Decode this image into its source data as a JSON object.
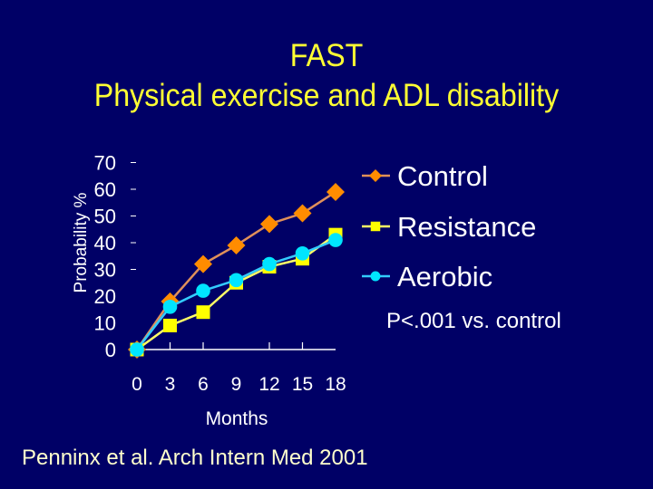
{
  "slide": {
    "title_line1": "FAST",
    "title_line2": "Physical exercise and ADL disability",
    "footer": "Penninx et al. Arch Intern Med 2001",
    "background": "#000066"
  },
  "legend": {
    "items": [
      {
        "label": "Control",
        "color": "#ff8c00",
        "line_color": "#e0905a",
        "marker": "diamond"
      },
      {
        "label": "Resistance",
        "color": "#ffff00",
        "line_color": "#ffff66",
        "marker": "square"
      },
      {
        "label": "Aerobic",
        "color": "#00e5ff",
        "line_color": "#33ccff",
        "marker": "circle"
      }
    ],
    "note": "P<.001 vs. control"
  },
  "axes": {
    "ylabel": "Probability %",
    "xlabel": "Months",
    "yticks": [
      "70",
      "60",
      "50",
      "40",
      "30",
      "20",
      "10",
      "0"
    ],
    "xticks": [
      "0",
      "3",
      "6",
      "9",
      "12",
      "15",
      "18"
    ]
  },
  "chart_data": {
    "type": "line",
    "title": "FAST Physical exercise and ADL disability",
    "xlabel": "Months",
    "ylabel": "Probability %",
    "x": [
      0,
      3,
      6,
      9,
      12,
      15,
      18
    ],
    "series": [
      {
        "name": "Control",
        "values": [
          0,
          18,
          32,
          39,
          47,
          51,
          59
        ]
      },
      {
        "name": "Resistance",
        "values": [
          0,
          9,
          14,
          25,
          31,
          34,
          43
        ]
      },
      {
        "name": "Aerobic",
        "values": [
          0,
          16,
          22,
          26,
          32,
          36,
          41
        ]
      }
    ],
    "ylim": [
      0,
      70
    ],
    "xlim": [
      0,
      18
    ],
    "grid": false,
    "legend_position": "right",
    "annotations": [
      "P<.001 vs. control"
    ]
  }
}
